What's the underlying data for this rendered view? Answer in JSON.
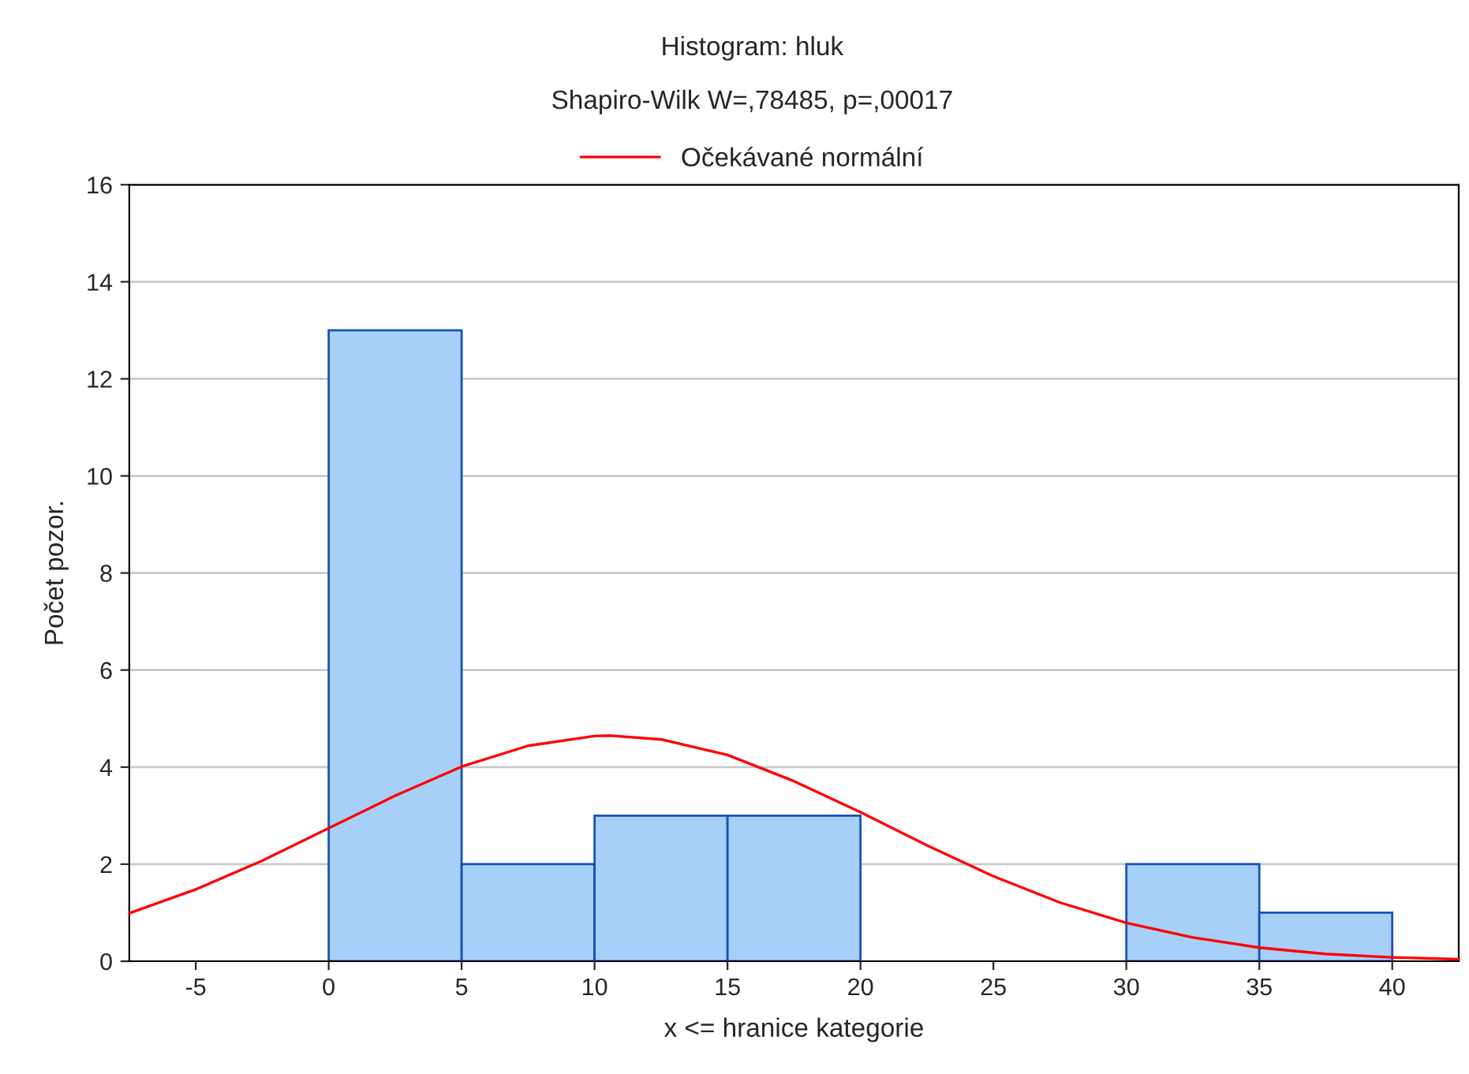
{
  "chart_data": {
    "type": "histogram",
    "title": "Histogram: hluk",
    "subtitle": "Shapiro-Wilk W=,78485, p=,00017",
    "xlabel": "x <= hranice kategorie",
    "ylabel": "Počet pozor.",
    "bins": [
      0,
      5,
      10,
      15,
      20,
      25,
      30,
      35,
      40
    ],
    "values": [
      13,
      2,
      3,
      3,
      0,
      0,
      2,
      1
    ],
    "color": "#a6d0f7",
    "series": [
      {
        "type": "line",
        "name": "Očekávané normální",
        "color": "#ff0000",
        "x": [
          -7.5,
          -5,
          -2.5,
          0,
          2.5,
          5,
          7.5,
          10,
          10.6,
          12.5,
          15,
          17.5,
          20,
          22.5,
          25,
          27.5,
          30,
          32.5,
          35,
          37.5,
          40,
          42.5
        ],
        "values": [
          0.99,
          1.48,
          2.07,
          2.74,
          3.41,
          4.01,
          4.44,
          4.64,
          4.65,
          4.57,
          4.25,
          3.71,
          3.07,
          2.39,
          1.75,
          1.21,
          0.79,
          0.49,
          0.28,
          0.15,
          0.08,
          0.04
        ]
      }
    ],
    "xlim": [
      -7.5,
      42.5
    ],
    "xticks": [
      -5,
      0,
      5,
      10,
      15,
      20,
      25,
      30,
      35,
      40
    ],
    "ylim": [
      0,
      16
    ],
    "yticks": [
      0,
      2,
      4,
      6,
      8,
      10,
      12,
      14,
      16
    ],
    "grid": "y",
    "legend": "top"
  }
}
